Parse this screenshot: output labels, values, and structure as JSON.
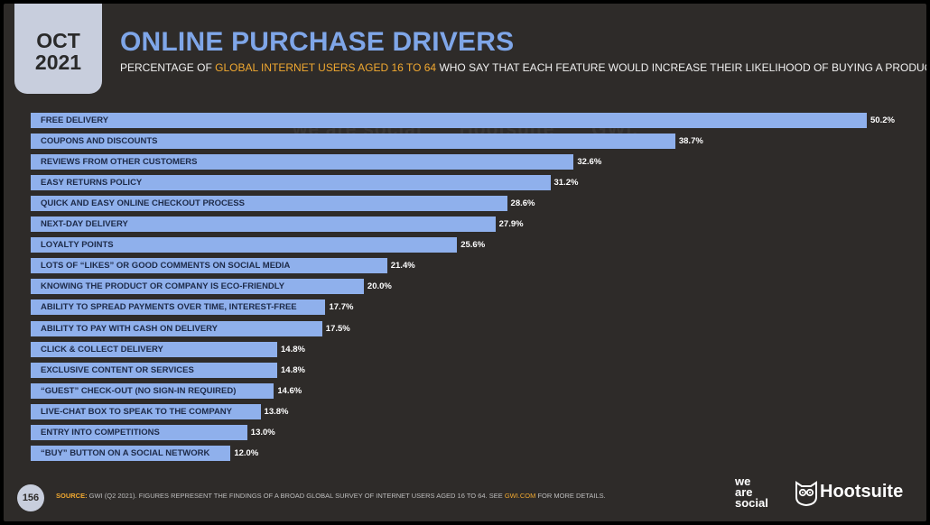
{
  "header": {
    "month": "OCT",
    "year": "2021",
    "title": "ONLINE PURCHASE DRIVERS",
    "subtitle_part1": "PERCENTAGE OF ",
    "subtitle_highlight": "GLOBAL INTERNET USERS AGED 16 TO 64",
    "subtitle_part2": " WHO SAY THAT EACH FEATURE WOULD INCREASE THEIR LIKELIHOOD OF BUYING A PRODUCT"
  },
  "watermark": {
    "brand1": "we are social",
    "brand2": "Hootsuite",
    "brand3": "GWI."
  },
  "chart_data": {
    "type": "bar",
    "orientation": "horizontal",
    "categories": [
      "FREE DELIVERY",
      "COUPONS AND DISCOUNTS",
      "REVIEWS FROM OTHER CUSTOMERS",
      "EASY RETURNS POLICY",
      "QUICK AND EASY ONLINE CHECKOUT PROCESS",
      "NEXT-DAY DELIVERY",
      "LOYALTY POINTS",
      "LOTS OF “LIKES” OR GOOD COMMENTS ON SOCIAL MEDIA",
      "KNOWING THE PRODUCT OR COMPANY IS ECO-FRIENDLY",
      "ABILITY TO SPREAD PAYMENTS OVER TIME, INTEREST-FREE",
      "ABILITY TO PAY WITH CASH ON DELIVERY",
      "CLICK & COLLECT DELIVERY",
      "EXCLUSIVE CONTENT OR SERVICES",
      "“GUEST” CHECK-OUT (NO SIGN-IN REQUIRED)",
      "LIVE-CHAT BOX TO SPEAK TO THE COMPANY",
      "ENTRY INTO COMPETITIONS",
      "“BUY” BUTTON ON A SOCIAL NETWORK"
    ],
    "values": [
      50.2,
      38.7,
      32.6,
      31.2,
      28.6,
      27.9,
      25.6,
      21.4,
      20.0,
      17.7,
      17.5,
      14.8,
      14.8,
      14.6,
      13.8,
      13.0,
      12.0
    ],
    "value_labels": [
      "50.2%",
      "38.7%",
      "32.6%",
      "31.2%",
      "28.6%",
      "27.9%",
      "25.6%",
      "21.4%",
      "20.0%",
      "17.7%",
      "17.5%",
      "14.8%",
      "14.8%",
      "14.6%",
      "13.8%",
      "13.0%",
      "12.0%"
    ],
    "bar_color": "#8fb0ec",
    "grid": false,
    "legend": "none"
  },
  "footer": {
    "page_number": "156",
    "source_label": "SOURCE:",
    "source_text": " GWI (Q2 2021). FIGURES REPRESENT THE FINDINGS OF A BROAD GLOBAL SURVEY OF INTERNET USERS AGED 16 TO 64. SEE ",
    "source_link": "GWI.COM",
    "source_end": " FOR MORE DETAILS.",
    "logo_we": "we",
    "logo_are": "are",
    "logo_social": "social",
    "logo_hootsuite": "Hootsuite"
  },
  "colors": {
    "background": "#2e2b29",
    "accent_blue": "#7fa6e8",
    "accent_orange": "#f0a830",
    "tab": "#c8cedd"
  }
}
